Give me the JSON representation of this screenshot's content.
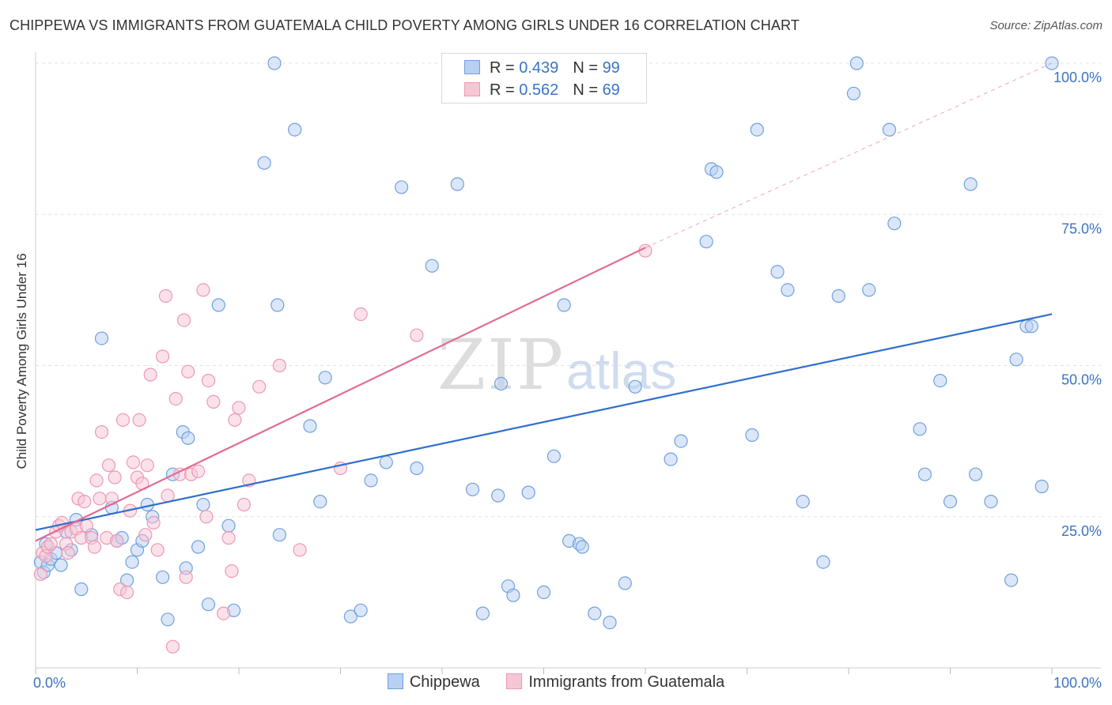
{
  "title": "CHIPPEWA VS IMMIGRANTS FROM GUATEMALA CHILD POVERTY AMONG GIRLS UNDER 16 CORRELATION CHART",
  "source": "Source: ZipAtlas.com",
  "watermark": {
    "zip": "ZIP",
    "atlas": "atlas"
  },
  "legend": {
    "rows": [
      {
        "r_label": "R = ",
        "r_value": "0.439",
        "n_label": "N = ",
        "n_value": "99"
      },
      {
        "r_label": "R = ",
        "r_value": "0.562",
        "n_label": "N = ",
        "n_value": "69"
      }
    ]
  },
  "chart_data": {
    "type": "scatter",
    "title": "CHIPPEWA VS IMMIGRANTS FROM GUATEMALA CHILD POVERTY AMONG GIRLS UNDER 16 CORRELATION CHART",
    "xlabel": "",
    "ylabel": "Child Poverty Among Girls Under 16",
    "xlim": [
      0,
      100
    ],
    "ylim": [
      0,
      100
    ],
    "x_tick_labels": [
      {
        "value": 0,
        "label": "0.0%"
      },
      {
        "value": 100,
        "label": "100.0%"
      }
    ],
    "y_tick_labels": [
      {
        "value": 25,
        "label": "25.0%"
      },
      {
        "value": 50,
        "label": "50.0%"
      },
      {
        "value": 75,
        "label": "75.0%"
      },
      {
        "value": 100,
        "label": "100.0%"
      }
    ],
    "grid": true,
    "series": [
      {
        "name": "Chippewa",
        "color": "#6fa0e0",
        "fill": "#b8d0f2",
        "line_color": "#2f6fcc",
        "trend": {
          "x": [
            0,
            100
          ],
          "y": [
            22.8,
            58.5
          ],
          "dashed_extension": false
        },
        "points": [
          [
            0.5,
            17.5
          ],
          [
            0.8,
            15.8
          ],
          [
            1.0,
            20.5
          ],
          [
            1.2,
            17.0
          ],
          [
            1.5,
            18.0
          ],
          [
            2.0,
            19.0
          ],
          [
            2.5,
            17.0
          ],
          [
            3.0,
            22.5
          ],
          [
            3.5,
            19.5
          ],
          [
            4.0,
            24.5
          ],
          [
            4.5,
            13.0
          ],
          [
            5.5,
            22.0
          ],
          [
            6.5,
            54.5
          ],
          [
            7.5,
            26.5
          ],
          [
            8.0,
            21.0
          ],
          [
            8.5,
            21.5
          ],
          [
            9.0,
            14.5
          ],
          [
            9.5,
            17.5
          ],
          [
            10.0,
            19.5
          ],
          [
            10.5,
            21.0
          ],
          [
            11.0,
            27.0
          ],
          [
            11.5,
            25.0
          ],
          [
            12.5,
            15.0
          ],
          [
            13.0,
            8.0
          ],
          [
            13.5,
            32.0
          ],
          [
            14.5,
            39.0
          ],
          [
            14.8,
            16.5
          ],
          [
            15.0,
            38.0
          ],
          [
            16.0,
            20.0
          ],
          [
            16.5,
            27.0
          ],
          [
            17.0,
            10.5
          ],
          [
            18.0,
            60.0
          ],
          [
            19.0,
            23.5
          ],
          [
            19.5,
            9.5
          ],
          [
            22.5,
            83.5
          ],
          [
            23.5,
            100.0
          ],
          [
            23.8,
            60.0
          ],
          [
            24.0,
            22.0
          ],
          [
            25.5,
            89.0
          ],
          [
            27.0,
            40.0
          ],
          [
            28.0,
            27.5
          ],
          [
            28.5,
            48.0
          ],
          [
            31.0,
            8.5
          ],
          [
            32.0,
            9.5
          ],
          [
            33.0,
            31.0
          ],
          [
            34.5,
            34.0
          ],
          [
            36.0,
            79.5
          ],
          [
            37.5,
            33.0
          ],
          [
            39.0,
            66.5
          ],
          [
            41.5,
            80.0
          ],
          [
            43.0,
            29.5
          ],
          [
            44.0,
            9.0
          ],
          [
            45.5,
            28.5
          ],
          [
            45.8,
            47.0
          ],
          [
            46.5,
            13.5
          ],
          [
            47.0,
            12.0
          ],
          [
            48.5,
            29.0
          ],
          [
            50.0,
            12.5
          ],
          [
            51.0,
            35.0
          ],
          [
            52.0,
            60.0
          ],
          [
            52.5,
            21.0
          ],
          [
            53.5,
            20.5
          ],
          [
            53.8,
            20.0
          ],
          [
            55.0,
            9.0
          ],
          [
            56.5,
            7.5
          ],
          [
            58.0,
            14.0
          ],
          [
            59.0,
            46.5
          ],
          [
            62.5,
            34.5
          ],
          [
            63.5,
            37.5
          ],
          [
            66.0,
            70.5
          ],
          [
            66.5,
            82.5
          ],
          [
            67.0,
            82.0
          ],
          [
            70.5,
            38.5
          ],
          [
            71.0,
            89.0
          ],
          [
            73.0,
            65.5
          ],
          [
            74.0,
            62.5
          ],
          [
            75.5,
            27.5
          ],
          [
            77.5,
            17.5
          ],
          [
            79.0,
            61.5
          ],
          [
            80.5,
            95.0
          ],
          [
            80.8,
            100.0
          ],
          [
            82.0,
            62.5
          ],
          [
            84.0,
            89.0
          ],
          [
            84.5,
            73.5
          ],
          [
            87.0,
            39.5
          ],
          [
            87.5,
            32.0
          ],
          [
            89.0,
            47.5
          ],
          [
            90.0,
            27.5
          ],
          [
            92.0,
            80.0
          ],
          [
            92.5,
            32.0
          ],
          [
            94.0,
            27.5
          ],
          [
            96.0,
            14.5
          ],
          [
            96.5,
            51.0
          ],
          [
            97.5,
            56.5
          ],
          [
            98.0,
            56.5
          ],
          [
            99.0,
            30.0
          ],
          [
            100.0,
            100.0
          ]
        ]
      },
      {
        "name": "Immigrants from Guatemala",
        "color": "#ee98b2",
        "fill": "#f7c6d5",
        "line_color": "#e06b93",
        "trend": {
          "x": [
            0,
            60
          ],
          "y": [
            21.0,
            69.5
          ],
          "dashed_extension": true,
          "extension_to": [
            100,
            100
          ]
        },
        "points": [
          [
            0.5,
            15.5
          ],
          [
            0.7,
            19.0
          ],
          [
            1.0,
            18.5
          ],
          [
            1.2,
            20.0
          ],
          [
            1.5,
            20.5
          ],
          [
            2.0,
            22.5
          ],
          [
            2.3,
            23.5
          ],
          [
            2.6,
            24.0
          ],
          [
            3.0,
            20.5
          ],
          [
            3.2,
            19.0
          ],
          [
            3.5,
            22.5
          ],
          [
            4.0,
            23.0
          ],
          [
            4.2,
            28.0
          ],
          [
            4.5,
            21.5
          ],
          [
            4.8,
            27.5
          ],
          [
            5.0,
            23.5
          ],
          [
            5.5,
            21.5
          ],
          [
            5.8,
            20.0
          ],
          [
            6.0,
            31.0
          ],
          [
            6.3,
            28.0
          ],
          [
            6.5,
            39.0
          ],
          [
            7.0,
            21.5
          ],
          [
            7.2,
            33.5
          ],
          [
            7.5,
            28.0
          ],
          [
            7.8,
            31.5
          ],
          [
            8.0,
            21.0
          ],
          [
            8.3,
            13.0
          ],
          [
            8.6,
            41.0
          ],
          [
            9.0,
            12.5
          ],
          [
            9.3,
            26.0
          ],
          [
            9.6,
            34.0
          ],
          [
            10.0,
            31.5
          ],
          [
            10.2,
            41.0
          ],
          [
            10.5,
            30.5
          ],
          [
            10.8,
            22.0
          ],
          [
            11.0,
            33.5
          ],
          [
            11.3,
            48.5
          ],
          [
            11.6,
            24.0
          ],
          [
            12.0,
            19.5
          ],
          [
            12.5,
            51.5
          ],
          [
            12.8,
            61.5
          ],
          [
            13.0,
            28.5
          ],
          [
            13.5,
            3.5
          ],
          [
            13.8,
            44.5
          ],
          [
            14.2,
            32.0
          ],
          [
            14.6,
            57.5
          ],
          [
            14.8,
            15.0
          ],
          [
            15.0,
            49.0
          ],
          [
            15.3,
            32.0
          ],
          [
            16.0,
            32.5
          ],
          [
            16.5,
            62.5
          ],
          [
            16.8,
            25.0
          ],
          [
            17.0,
            47.5
          ],
          [
            17.5,
            44.0
          ],
          [
            18.5,
            9.0
          ],
          [
            19.0,
            21.5
          ],
          [
            19.3,
            16.0
          ],
          [
            19.6,
            41.0
          ],
          [
            20.0,
            43.0
          ],
          [
            20.5,
            27.0
          ],
          [
            21.0,
            31.0
          ],
          [
            22.0,
            46.5
          ],
          [
            24.0,
            50.0
          ],
          [
            26.0,
            19.5
          ],
          [
            30.0,
            33.0
          ],
          [
            32.0,
            58.5
          ],
          [
            37.5,
            55.0
          ],
          [
            60.0,
            69.0
          ]
        ]
      }
    ]
  },
  "bottom_legend": [
    {
      "label": "Chippewa"
    },
    {
      "label": "Immigrants from Guatemala"
    }
  ]
}
